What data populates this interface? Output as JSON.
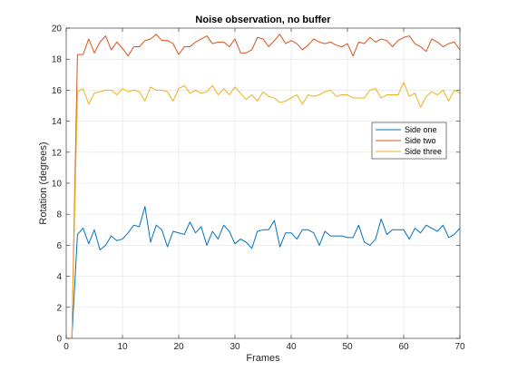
{
  "chart_data": {
    "type": "line",
    "title": "Noise observation, no buffer",
    "xlabel": "Frames",
    "ylabel": "Rotation (degrees)",
    "xlim": [
      0,
      70
    ],
    "ylim": [
      0,
      20
    ],
    "xticks": [
      0,
      10,
      20,
      30,
      40,
      50,
      60,
      70
    ],
    "yticks": [
      0,
      2,
      4,
      6,
      8,
      10,
      12,
      14,
      16,
      18,
      20
    ],
    "grid": true,
    "legend_position": "right",
    "x": [
      1,
      2,
      3,
      4,
      5,
      6,
      7,
      8,
      9,
      10,
      11,
      12,
      13,
      14,
      15,
      16,
      17,
      18,
      19,
      20,
      21,
      22,
      23,
      24,
      25,
      26,
      27,
      28,
      29,
      30,
      31,
      32,
      33,
      34,
      35,
      36,
      37,
      38,
      39,
      40,
      41,
      42,
      43,
      44,
      45,
      46,
      47,
      48,
      49,
      50,
      51,
      52,
      53,
      54,
      55,
      56,
      57,
      58,
      59,
      60,
      61,
      62,
      63,
      64,
      65,
      66,
      67,
      68,
      69,
      70
    ],
    "series": [
      {
        "name": "Side one",
        "color": "#0072BD",
        "values": [
          0,
          6.7,
          7.1,
          6.1,
          7.0,
          5.7,
          6.0,
          6.6,
          6.3,
          6.4,
          6.8,
          7.3,
          7.2,
          8.5,
          6.2,
          7.3,
          7.0,
          5.9,
          6.9,
          6.8,
          6.7,
          7.5,
          6.8,
          7.2,
          6.0,
          6.9,
          6.4,
          7.3,
          6.9,
          6.1,
          6.4,
          6.2,
          5.8,
          6.9,
          7.0,
          7.0,
          7.6,
          5.9,
          6.8,
          6.8,
          6.4,
          7.0,
          7.0,
          6.8,
          6.0,
          6.9,
          6.6,
          6.6,
          6.6,
          6.5,
          6.5,
          7.3,
          6.2,
          6.0,
          6.4,
          7.7,
          6.7,
          7.0,
          7.0,
          7.0,
          6.4,
          7.1,
          6.8,
          7.3,
          7.1,
          6.9,
          7.3,
          6.5,
          6.7,
          7.1
        ]
      },
      {
        "name": "Side two",
        "color": "#D95319",
        "values": [
          0,
          18.3,
          18.3,
          19.3,
          18.4,
          19.1,
          19.5,
          18.6,
          19.1,
          18.7,
          18.2,
          18.8,
          18.8,
          19.2,
          19.3,
          19.6,
          19.2,
          19.2,
          19.0,
          18.3,
          18.8,
          18.8,
          19.1,
          19.3,
          19.5,
          19.0,
          19.1,
          19.1,
          18.8,
          19.3,
          18.4,
          18.4,
          18.6,
          19.4,
          19.3,
          18.8,
          19.2,
          19.6,
          19.0,
          19.2,
          19.0,
          18.6,
          18.9,
          19.3,
          19.1,
          19.0,
          19.1,
          18.9,
          18.8,
          19.0,
          18.2,
          19.1,
          19.0,
          19.4,
          19.1,
          19.3,
          19.2,
          18.8,
          19.2,
          19.4,
          19.5,
          19.0,
          18.8,
          18.5,
          19.3,
          19.1,
          18.8,
          19.0,
          19.1,
          18.6
        ]
      },
      {
        "name": "Side three",
        "color": "#EDB120",
        "values": [
          0,
          15.9,
          16.1,
          15.1,
          15.8,
          15.9,
          16.0,
          16.0,
          15.7,
          16.1,
          15.9,
          16.0,
          15.9,
          15.3,
          16.2,
          16.0,
          16.0,
          15.9,
          15.3,
          16.1,
          16.3,
          15.8,
          16.0,
          15.8,
          15.9,
          16.3,
          15.7,
          16.1,
          15.7,
          16.2,
          15.8,
          15.4,
          15.7,
          15.3,
          15.9,
          15.6,
          15.5,
          15.2,
          15.3,
          15.5,
          15.7,
          15.1,
          15.7,
          15.6,
          15.7,
          15.9,
          16.0,
          15.6,
          15.7,
          15.7,
          15.5,
          15.5,
          15.5,
          16.0,
          16.1,
          15.5,
          15.7,
          15.7,
          15.7,
          16.5,
          15.6,
          15.8,
          14.9,
          15.6,
          15.9,
          15.7,
          16.0,
          15.3,
          16.0,
          15.8
        ]
      }
    ]
  }
}
